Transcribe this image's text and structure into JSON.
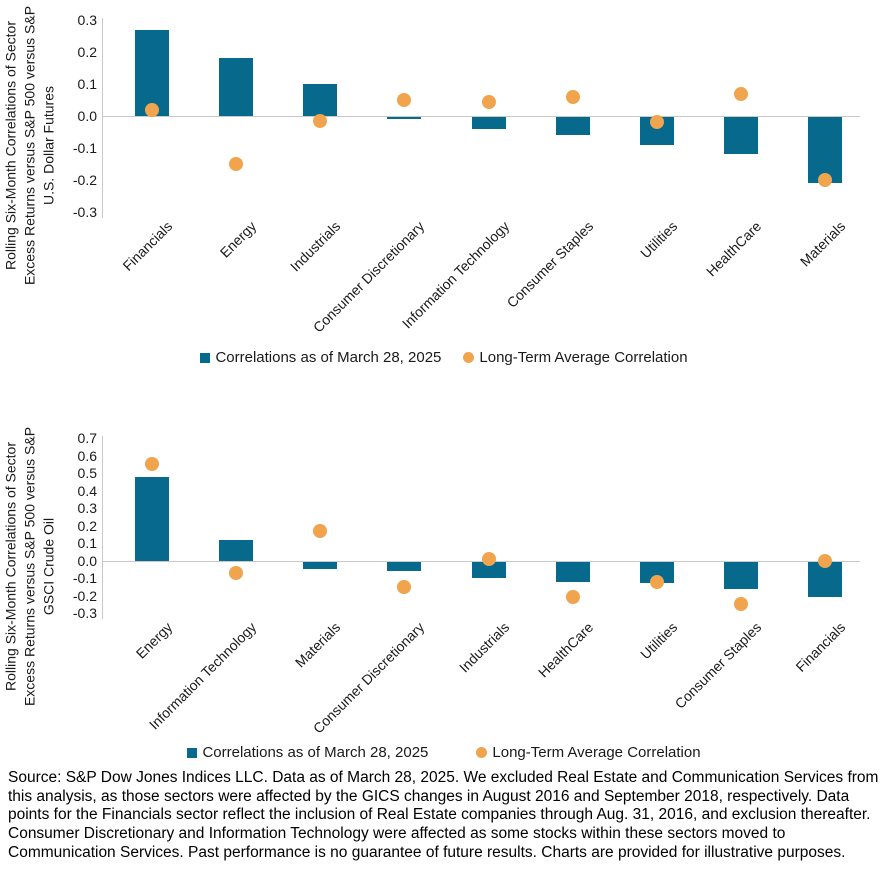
{
  "colors": {
    "bar": "#07698B",
    "dot": "#F0A44E",
    "axis_line": "#C9C9C9",
    "text": "#1A1A1A"
  },
  "legend": {
    "bars_label": "Correlations as of March 28, 2025",
    "dots_label": "Long-Term Average Correlation"
  },
  "source_text": "Source: S&P Dow Jones Indices LLC. Data as of March 28, 2025. We excluded Real Estate and Communication Services from this analysis, as those sectors were affected by the GICS changes in August 2016 and September 2018, respectively. Data points for the Financials sector reflect the inclusion of Real Estate companies through Aug. 31, 2016, and exclusion thereafter. Consumer Discretionary and Information Technology were affected as some stocks within these sectors moved to Communication Services. Past performance is no guarantee of future results. Charts are provided for illustrative purposes.",
  "chart_data": [
    {
      "type": "bar",
      "title": "",
      "ylabel": "Rolling Six-Month Correlations of Sector Excess Returns versus S&P 500 versus S&P U.S. Dollar Futures",
      "xlabel": "",
      "categories": [
        "Financials",
        "Energy",
        "Industrials",
        "Consumer Discretionary",
        "Information Technology",
        "Consumer Staples",
        "Utilities",
        "HealthCare",
        "Materials"
      ],
      "series": [
        {
          "name": "Correlations as of March 28, 2025",
          "type": "bar",
          "values": [
            0.27,
            0.18,
            0.1,
            -0.01,
            -0.04,
            -0.06,
            -0.09,
            -0.12,
            -0.21
          ]
        },
        {
          "name": "Long-Term Average Correlation",
          "type": "scatter",
          "values": [
            0.02,
            -0.15,
            -0.015,
            0.05,
            0.045,
            0.06,
            -0.02,
            0.07,
            -0.2
          ]
        }
      ],
      "ylim": [
        -0.3,
        0.3
      ],
      "yticks": [
        0.3,
        0.2,
        0.1,
        0.0,
        -0.1,
        -0.2,
        -0.3
      ],
      "grid": false,
      "legend_position": "bottom"
    },
    {
      "type": "bar",
      "title": "",
      "ylabel": "Rolling Six-Month Correlations of Sector Excess Returns versus S&P 500 versus S&P GSCI Crude Oil",
      "xlabel": "",
      "categories": [
        "Energy",
        "Information Technology",
        "Materials",
        "Consumer Discretionary",
        "Industrials",
        "HealthCare",
        "Utilities",
        "Consumer Staples",
        "Financials"
      ],
      "series": [
        {
          "name": "Correlations as of March 28, 2025",
          "type": "bar",
          "values": [
            0.48,
            0.12,
            -0.05,
            -0.06,
            -0.1,
            -0.12,
            -0.13,
            -0.16,
            -0.21
          ]
        },
        {
          "name": "Long-Term Average Correlation",
          "type": "scatter",
          "values": [
            0.55,
            -0.07,
            0.17,
            -0.15,
            0.01,
            -0.21,
            -0.12,
            -0.25,
            0.0
          ]
        }
      ],
      "ylim": [
        -0.3,
        0.7
      ],
      "yticks": [
        0.7,
        0.6,
        0.5,
        0.4,
        0.3,
        0.2,
        0.1,
        0.0,
        -0.1,
        -0.2,
        -0.3
      ],
      "grid": false,
      "legend_position": "bottom"
    }
  ]
}
